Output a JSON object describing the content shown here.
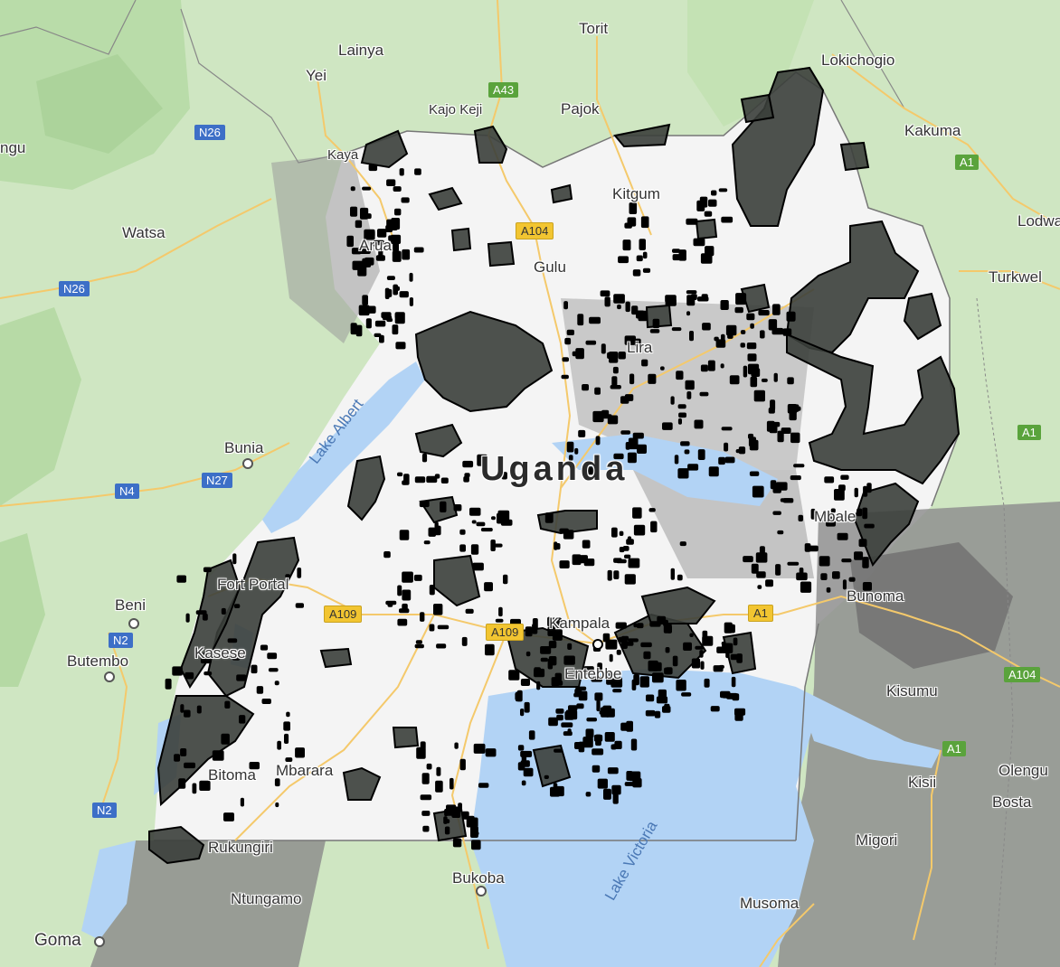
{
  "country_label": "Uganda",
  "water_labels": {
    "lake_albert": "Lake Albert",
    "lake_victoria": "Lake Victoria"
  },
  "places": {
    "lainya": "Lainya",
    "torit": "Torit",
    "lokichogio": "Lokichogio",
    "yei": "Yei",
    "kajo_keji": "Kajo Keji",
    "pajok": "Pajok",
    "kakuma": "Kakuma",
    "ngu": "ngu",
    "kaya": "Kaya",
    "kitgum": "Kitgum",
    "watsa": "Watsa",
    "lodwa": "Lodwa",
    "gulu": "Gulu",
    "arua": "Arua",
    "turkwel": "Turkwel",
    "lira": "Lira",
    "bunia": "Bunia",
    "beni": "Beni",
    "fort_portal": "Fort Portal",
    "kampala": "Kampala",
    "entebbe": "Entebbe",
    "butembo": "Butembo",
    "kasese": "Kasese",
    "bunoma": "Bunoma",
    "kisumu": "Kisumu",
    "mbarara": "Mbarara",
    "olengu": "Olengu",
    "kisii": "Kisii",
    "bosta": "Bosta",
    "ibanda": "Bitoma",
    "rukungiri": "Rukungiri",
    "migori": "Migori",
    "bukoba": "Bukoba",
    "musoma": "Musoma",
    "goma": "Goma",
    "ntungamo": "Ntungamo",
    "mbale": "Mbale"
  },
  "road_shields": {
    "a43": "A43",
    "n26_top": "N26",
    "a1_kakuma": "A1",
    "a104_gulu": "A104",
    "n26_left": "N26",
    "a1_east": "A1",
    "n4": "N4",
    "n27": "N27",
    "a109_west": "A109",
    "a109_kampala": "A109",
    "a1_jinja": "A1",
    "n2_beni": "N2",
    "a104_kisumu": "A104",
    "a1_kisii": "A1",
    "n2_lower": "N2"
  },
  "colors": {
    "land": "#cfe6c2",
    "uganda_land": "#f4f4f4",
    "water": "#b2d3f5",
    "overlay_fill": "#3b3f3b",
    "overlay_stroke": "#000000",
    "density": "#8a8a8a",
    "road": "#f4c96b"
  }
}
